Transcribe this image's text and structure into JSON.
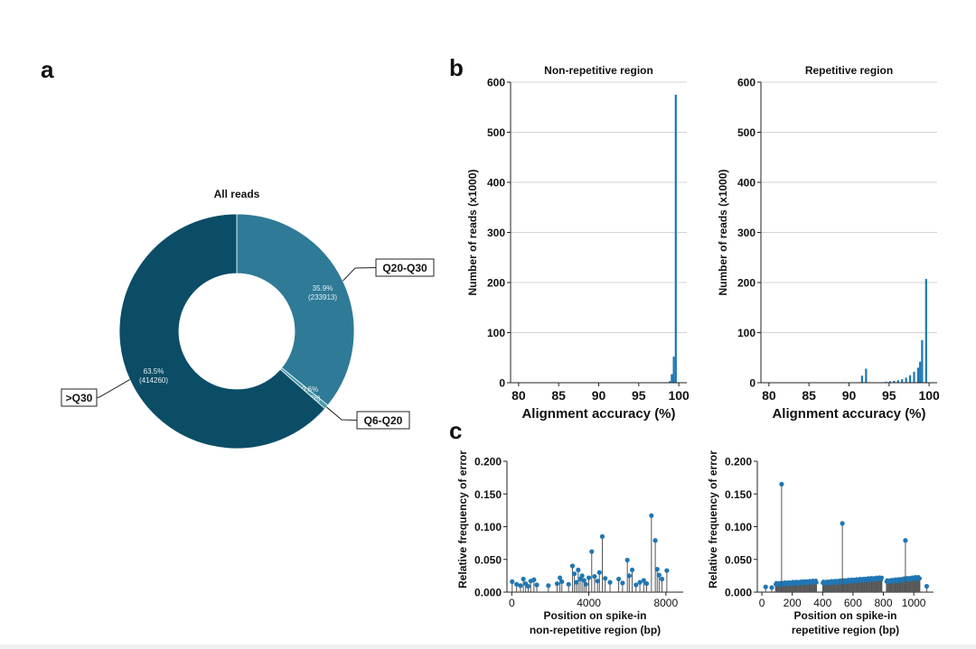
{
  "panel_labels": {
    "a": "a",
    "b": "b",
    "c": "c"
  },
  "chart_data": [
    {
      "id": "a",
      "type": "pie",
      "style": "donut",
      "title": "All reads",
      "slices": [
        {
          "name": "Q20-Q30",
          "percent_label": "35.9%",
          "count_label": "(233913)",
          "value": 233913,
          "color": "#2f7a96"
        },
        {
          "name": "Q6-Q20",
          "percent_label": "0.6%",
          "count_label": "(3936)",
          "value": 3936,
          "color": "#4a9aad"
        },
        {
          "name": ">Q30",
          "percent_label": "63.5%",
          "count_label": "(414260)",
          "value": 414260,
          "color": "#0b4d66"
        }
      ]
    },
    {
      "id": "b1",
      "type": "bar",
      "title": "Non-repetitive region",
      "xlabel": "Alignment accuracy (%)",
      "ylabel": "Number of reads (x1000)",
      "xlim": [
        79,
        101
      ],
      "ylim": [
        0,
        600
      ],
      "xticks": [
        80,
        85,
        90,
        95,
        100
      ],
      "yticks": [
        0,
        100,
        200,
        300,
        400,
        500,
        600
      ],
      "grid": true,
      "bin_width": 0.5,
      "bars": [
        [
          98.75,
          3
        ],
        [
          99.0,
          17
        ],
        [
          99.25,
          52
        ],
        [
          99.5,
          575
        ]
      ],
      "color": "#1f77b4"
    },
    {
      "id": "b2",
      "type": "bar",
      "title": "Repetitive region",
      "xlabel": "Alignment accuracy (%)",
      "ylabel": "Number of reads (x1000)",
      "xlim": [
        79,
        101
      ],
      "ylim": [
        0,
        600
      ],
      "xticks": [
        80,
        85,
        90,
        95,
        100
      ],
      "yticks": [
        0,
        100,
        200,
        300,
        400,
        500,
        600
      ],
      "grid": true,
      "bin_width": 0.5,
      "bars": [
        [
          91.0,
          1
        ],
        [
          91.5,
          14
        ],
        [
          92.0,
          28
        ],
        [
          92.5,
          1
        ],
        [
          93.5,
          1
        ],
        [
          94.5,
          2
        ],
        [
          95.0,
          3
        ],
        [
          95.5,
          4
        ],
        [
          96.0,
          5
        ],
        [
          96.5,
          7
        ],
        [
          97.0,
          10
        ],
        [
          97.5,
          15
        ],
        [
          98.0,
          22
        ],
        [
          98.5,
          30
        ],
        [
          98.75,
          42
        ],
        [
          99.0,
          85
        ],
        [
          99.5,
          207
        ]
      ],
      "color": "#1f77b4"
    },
    {
      "id": "c1",
      "type": "scatter",
      "style": "stem",
      "xlabel": "Position on spike-in\nnon-repetitive region (bp)",
      "ylabel": "Relative frequency of error",
      "xlim": [
        -250,
        8900
      ],
      "ylim": [
        0,
        0.2
      ],
      "xticks": [
        0,
        4000,
        8000
      ],
      "yticks": [
        0.0,
        0.05,
        0.1,
        0.15,
        0.2
      ],
      "ytick_labels": [
        "0.000",
        "0.050",
        "0.100",
        "0.150",
        "0.200"
      ],
      "points": [
        [
          20,
          0.016
        ],
        [
          250,
          0.012
        ],
        [
          450,
          0.01
        ],
        [
          600,
          0.02
        ],
        [
          720,
          0.013
        ],
        [
          850,
          0.009
        ],
        [
          980,
          0.017
        ],
        [
          1150,
          0.019
        ],
        [
          1300,
          0.011
        ],
        [
          1900,
          0.01
        ],
        [
          2350,
          0.013
        ],
        [
          2500,
          0.022
        ],
        [
          2600,
          0.016
        ],
        [
          2950,
          0.012
        ],
        [
          3150,
          0.04
        ],
        [
          3250,
          0.028
        ],
        [
          3350,
          0.015
        ],
        [
          3450,
          0.034
        ],
        [
          3550,
          0.02
        ],
        [
          3650,
          0.025
        ],
        [
          3750,
          0.018
        ],
        [
          3850,
          0.012
        ],
        [
          4000,
          0.022
        ],
        [
          4150,
          0.062
        ],
        [
          4300,
          0.024
        ],
        [
          4450,
          0.017
        ],
        [
          4550,
          0.03
        ],
        [
          4700,
          0.085
        ],
        [
          4850,
          0.021
        ],
        [
          5100,
          0.015
        ],
        [
          5550,
          0.02
        ],
        [
          5750,
          0.014
        ],
        [
          6000,
          0.049
        ],
        [
          6100,
          0.025
        ],
        [
          6250,
          0.034
        ],
        [
          6450,
          0.011
        ],
        [
          6650,
          0.015
        ],
        [
          6850,
          0.018
        ],
        [
          7000,
          0.013
        ],
        [
          7250,
          0.117
        ],
        [
          7450,
          0.079
        ],
        [
          7550,
          0.035
        ],
        [
          7650,
          0.026
        ],
        [
          7800,
          0.02
        ],
        [
          8050,
          0.033
        ]
      ],
      "color": "#1f77b4"
    },
    {
      "id": "c2",
      "type": "scatter",
      "style": "stem",
      "xlabel": "Position on spike-in\nrepetitive region (bp)",
      "ylabel": "Relative frequency of error",
      "xlim": [
        -30,
        1130
      ],
      "ylim": [
        0,
        0.2
      ],
      "xticks": [
        0,
        200,
        400,
        600,
        800,
        1000
      ],
      "yticks": [
        0.0,
        0.05,
        0.1,
        0.15,
        0.2
      ],
      "ytick_labels": [
        "0.000",
        "0.050",
        "0.100",
        "0.150",
        "0.200"
      ],
      "segments": [
        [
          90,
          360,
          0.012,
          0.016
        ],
        [
          400,
          790,
          0.014,
          0.021
        ],
        [
          820,
          1040,
          0.016,
          0.022
        ]
      ],
      "outliers": [
        [
          25,
          0.008
        ],
        [
          65,
          0.007
        ],
        [
          130,
          0.165
        ],
        [
          530,
          0.105
        ],
        [
          945,
          0.079
        ],
        [
          1085,
          0.009
        ]
      ],
      "color": "#1f77b4"
    }
  ]
}
